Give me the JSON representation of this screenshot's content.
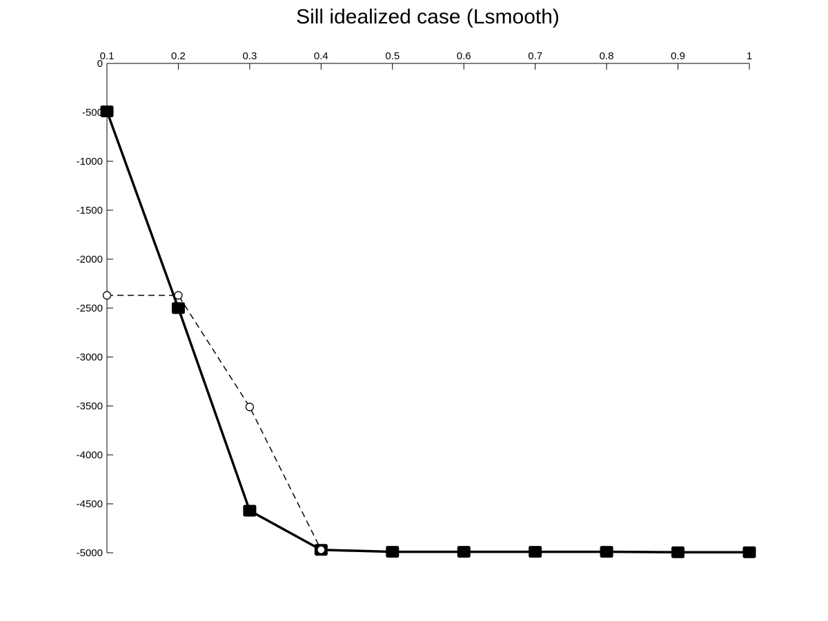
{
  "chart_data": {
    "type": "line",
    "title": "Sill idealized case (Lsmooth)",
    "xlabel": "",
    "ylabel": "",
    "x_axis_location": "top",
    "y_axis_direction": "descending",
    "xlim": [
      0.1,
      1
    ],
    "ylim": [
      -5000,
      0
    ],
    "x_ticks": [
      0.1,
      0.2,
      0.3,
      0.4,
      0.5,
      0.6,
      0.7,
      0.8,
      0.9,
      1
    ],
    "x_tick_labels": [
      "0.1",
      "0.2",
      "0.3",
      "0.4",
      "0.5",
      "0.6",
      "0.7",
      "0.8",
      "0.9",
      "1"
    ],
    "y_ticks": [
      0,
      -500,
      -1000,
      -1500,
      -2000,
      -2500,
      -3000,
      -3500,
      -4000,
      -4500,
      -5000
    ],
    "y_tick_labels": [
      "0",
      "-500",
      "-1000",
      "-1500",
      "-2000",
      "-2500",
      "-3000",
      "-3500",
      "-4000",
      "-4500",
      "-5000"
    ],
    "grid": false,
    "box": false,
    "series": [
      {
        "style": "solid-thick",
        "marker": "filled-square",
        "color": "#000000",
        "x": [
          0.1,
          0.2,
          0.3,
          0.4,
          0.5,
          0.6,
          0.7,
          0.8,
          0.9,
          1
        ],
        "y": [
          -490,
          -2500,
          -4570,
          -4970,
          -4990,
          -4990,
          -4990,
          -4990,
          -4995,
          -4995
        ]
      },
      {
        "style": "dashed-thin",
        "marker": "open-circle",
        "color": "#000000",
        "x": [
          0.1,
          0.2,
          0.3,
          0.4
        ],
        "y": [
          -2370,
          -2370,
          -3510,
          -4970
        ]
      }
    ]
  }
}
